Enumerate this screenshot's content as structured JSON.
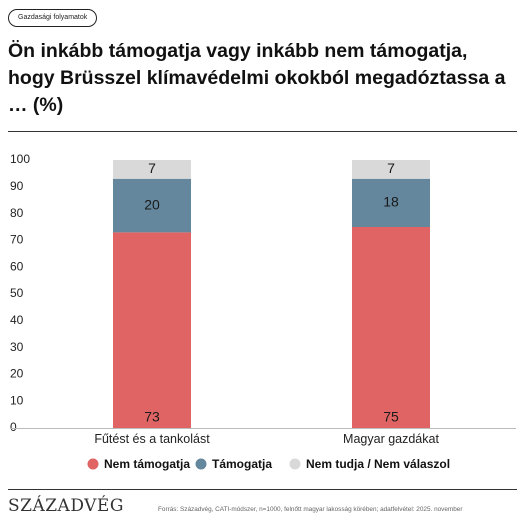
{
  "tag": "Gazdasági folyamatok",
  "title": "Ön inkább támogatja vagy inkább nem támogatja, hogy Brüsszel klímavédelmi okokból megadóztassa a … (%)",
  "source": "Forrás: Századvég, CATI-módszer, n=1000, felnőtt magyar lakosság körében; adatfelvétel: 2025. november",
  "logo": "SZÁZADVÉG",
  "chart_data": {
    "type": "bar",
    "stacked": true,
    "categories": [
      "Fűtést és a tankolást",
      "Magyar gazdákat"
    ],
    "series": [
      {
        "name": "Nem támogatja",
        "values": [
          73,
          75
        ],
        "color": "#e06464"
      },
      {
        "name": "Támogatja",
        "values": [
          20,
          18
        ],
        "color": "#64879e"
      },
      {
        "name": "Nem tudja / Nem válaszol",
        "values": [
          7,
          7
        ],
        "color": "#d9d9d9"
      }
    ],
    "ylim": [
      0,
      100
    ],
    "yticks": [
      0,
      10,
      20,
      30,
      40,
      50,
      60,
      70,
      80,
      90,
      100
    ],
    "grid": false,
    "legend": "bottom"
  }
}
